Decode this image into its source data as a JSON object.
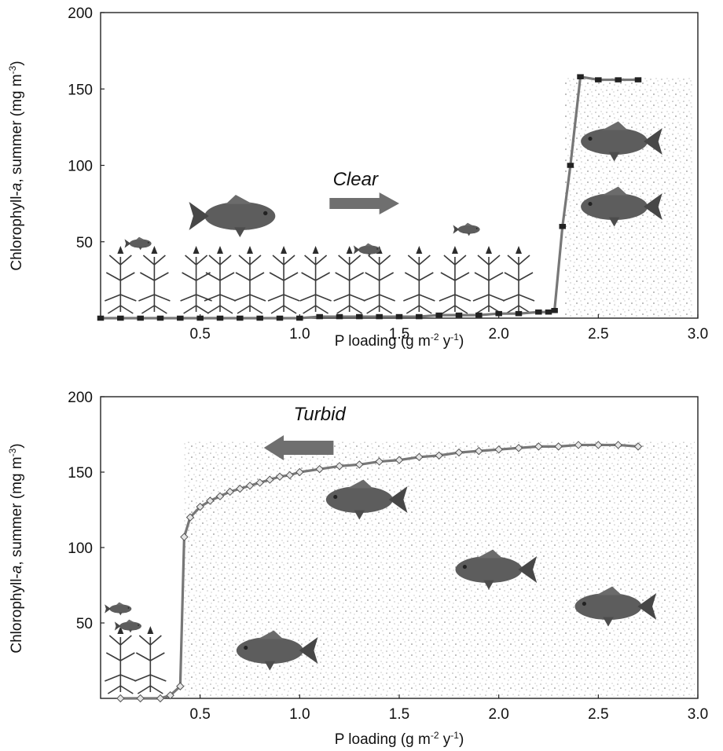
{
  "colors": {
    "line": "#777777",
    "marker_fill": "#e6e6e6",
    "marker_edge": "#555555",
    "arrow": "#6f6f6f",
    "frame": "#222222",
    "turbid_speckle": "#b8b8b8",
    "plant": "#3a3a3a",
    "fish": "#5d5d5d"
  },
  "chart_data": [
    {
      "type": "line",
      "panel": "top",
      "annotation": "Clear",
      "arrow_direction": "right",
      "xlabel": "P loading (g m-2 y-1)",
      "xlabel_parts": {
        "a": "P loading (g m",
        "b": "-2",
        "c": " y",
        "d": "-1",
        "e": ")"
      },
      "ylabel": "Chlorophyll-a, summer (mg m-3)",
      "ylabel_parts": {
        "a": "Chlorophyll-",
        "b": "a",
        "c": ", summer (mg m",
        "d": "-3",
        "e": ")"
      },
      "xlim": [
        0,
        3.0
      ],
      "ylim": [
        0,
        200
      ],
      "xticks": [
        "0.5",
        "1.0",
        "1.5",
        "2.0",
        "2.5",
        "3.0"
      ],
      "yticks": [
        "50",
        "100",
        "150",
        "200"
      ],
      "grid": false,
      "series": [
        {
          "x": [
            0.0,
            0.1,
            0.2,
            0.3,
            0.4,
            0.5,
            0.6,
            0.7,
            0.8,
            0.9,
            1.0,
            1.1,
            1.2,
            1.3,
            1.4,
            1.5,
            1.6,
            1.7,
            1.8,
            1.9,
            2.0,
            2.1,
            2.2,
            2.25,
            2.28,
            2.32,
            2.36,
            2.41,
            2.5,
            2.6,
            2.7
          ],
          "y": [
            0,
            0,
            0,
            0,
            0,
            0,
            0,
            0,
            0,
            0,
            0,
            1,
            1,
            1,
            1,
            1,
            1,
            2,
            2,
            2,
            3,
            3,
            4,
            4,
            5,
            60,
            100,
            158,
            156,
            156,
            156
          ],
          "markers": "square"
        }
      ]
    },
    {
      "type": "line",
      "panel": "bottom",
      "annotation": "Turbid",
      "arrow_direction": "left",
      "xlabel": "P loading (g m-2 y-1)",
      "xlabel_parts": {
        "a": "P loading (g m",
        "b": "-2",
        "c": " y",
        "d": "-1",
        "e": ")"
      },
      "ylabel": "Chlorophyll-a, summer (mg m-3)",
      "ylabel_parts": {
        "a": "Chlorophyll-",
        "b": "a",
        "c": ", summer (mg m",
        "d": "-3",
        "e": ")"
      },
      "xlim": [
        0,
        3.0
      ],
      "ylim": [
        0,
        200
      ],
      "xticks": [
        "0.5",
        "1.0",
        "1.5",
        "2.0",
        "2.5",
        "3.0"
      ],
      "yticks": [
        "50",
        "100",
        "150",
        "200"
      ],
      "grid": false,
      "series": [
        {
          "x": [
            0.1,
            0.2,
            0.3,
            0.35,
            0.4,
            0.42,
            0.45,
            0.5,
            0.55,
            0.6,
            0.65,
            0.7,
            0.75,
            0.8,
            0.85,
            0.9,
            0.95,
            1.0,
            1.1,
            1.2,
            1.3,
            1.4,
            1.5,
            1.6,
            1.7,
            1.8,
            1.9,
            2.0,
            2.1,
            2.2,
            2.3,
            2.4,
            2.5,
            2.6,
            2.7
          ],
          "y": [
            0,
            0,
            0,
            2,
            8,
            107,
            120,
            127,
            131,
            134,
            137,
            139,
            141,
            143,
            145,
            147,
            148,
            150,
            152,
            154,
            155,
            157,
            158,
            160,
            161,
            163,
            164,
            165,
            166,
            167,
            167,
            168,
            168,
            168,
            167
          ],
          "markers": "diamond"
        }
      ]
    }
  ]
}
